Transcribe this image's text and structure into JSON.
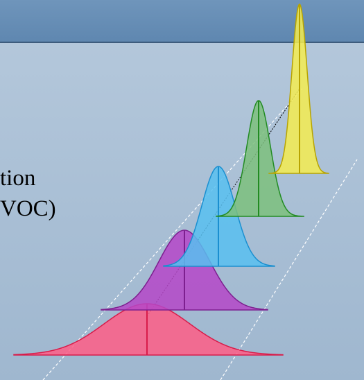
{
  "slide": {
    "text_lines": [
      "tion",
      "VOC)"
    ]
  },
  "distributions": [
    {
      "color": "#ff5d86",
      "stroke": "#d81c4a"
    },
    {
      "color": "#b547c8",
      "stroke": "#7d1f8f"
    },
    {
      "color": "#58bff0",
      "stroke": "#1a8fd0"
    },
    {
      "color": "#7cc07c",
      "stroke": "#228b22"
    },
    {
      "color": "#f4ec50",
      "stroke": "#b8a400"
    }
  ]
}
